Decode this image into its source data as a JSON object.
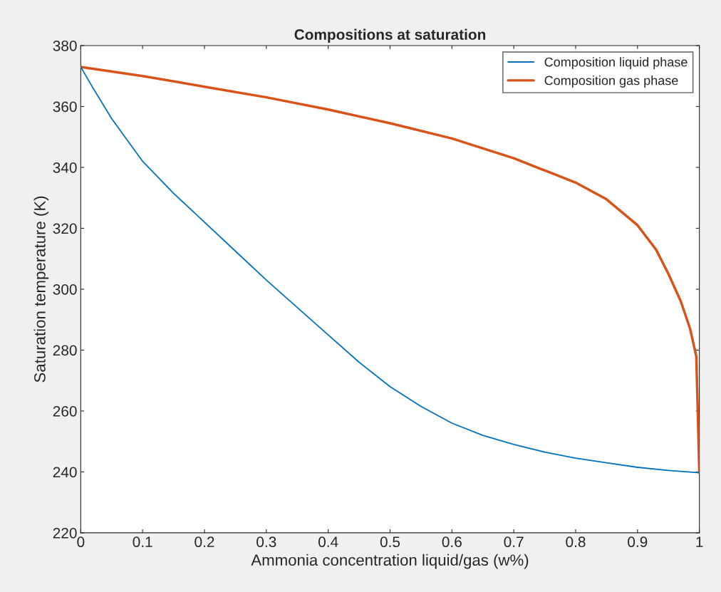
{
  "chart_data": {
    "type": "line",
    "title": "Compositions at saturation",
    "xlabel": "Ammonia concentration liquid/gas (w%)",
    "ylabel": "Saturation temperature (K)",
    "xlim": [
      0,
      1
    ],
    "ylim": [
      220,
      380
    ],
    "xticks": [
      0,
      0.1,
      0.2,
      0.3,
      0.4,
      0.5,
      0.6,
      0.7,
      0.8,
      0.9,
      1
    ],
    "yticks": [
      220,
      240,
      260,
      280,
      300,
      320,
      340,
      360,
      380
    ],
    "grid": false,
    "legend": "top right",
    "series": [
      {
        "name": "Composition liquid phase",
        "color": "#0072bd",
        "x": [
          0,
          0.02,
          0.05,
          0.1,
          0.15,
          0.2,
          0.25,
          0.3,
          0.35,
          0.4,
          0.45,
          0.5,
          0.55,
          0.6,
          0.65,
          0.7,
          0.75,
          0.8,
          0.85,
          0.9,
          0.95,
          1
        ],
        "values": [
          373,
          366,
          356,
          342,
          331.5,
          322,
          312.5,
          303,
          294,
          285,
          276,
          268,
          261.5,
          256,
          252,
          249,
          246.5,
          244.5,
          243,
          241.5,
          240.5,
          239.7
        ]
      },
      {
        "name": "Composition gas phase",
        "color": "#d95319",
        "x": [
          0,
          0.1,
          0.2,
          0.3,
          0.4,
          0.5,
          0.6,
          0.7,
          0.8,
          0.85,
          0.9,
          0.93,
          0.95,
          0.97,
          0.985,
          0.995,
          1
        ],
        "values": [
          373,
          370,
          366.5,
          363,
          359,
          354.5,
          349.5,
          343,
          335,
          329.5,
          321,
          313,
          305,
          296,
          287,
          278,
          239.7
        ]
      }
    ]
  }
}
